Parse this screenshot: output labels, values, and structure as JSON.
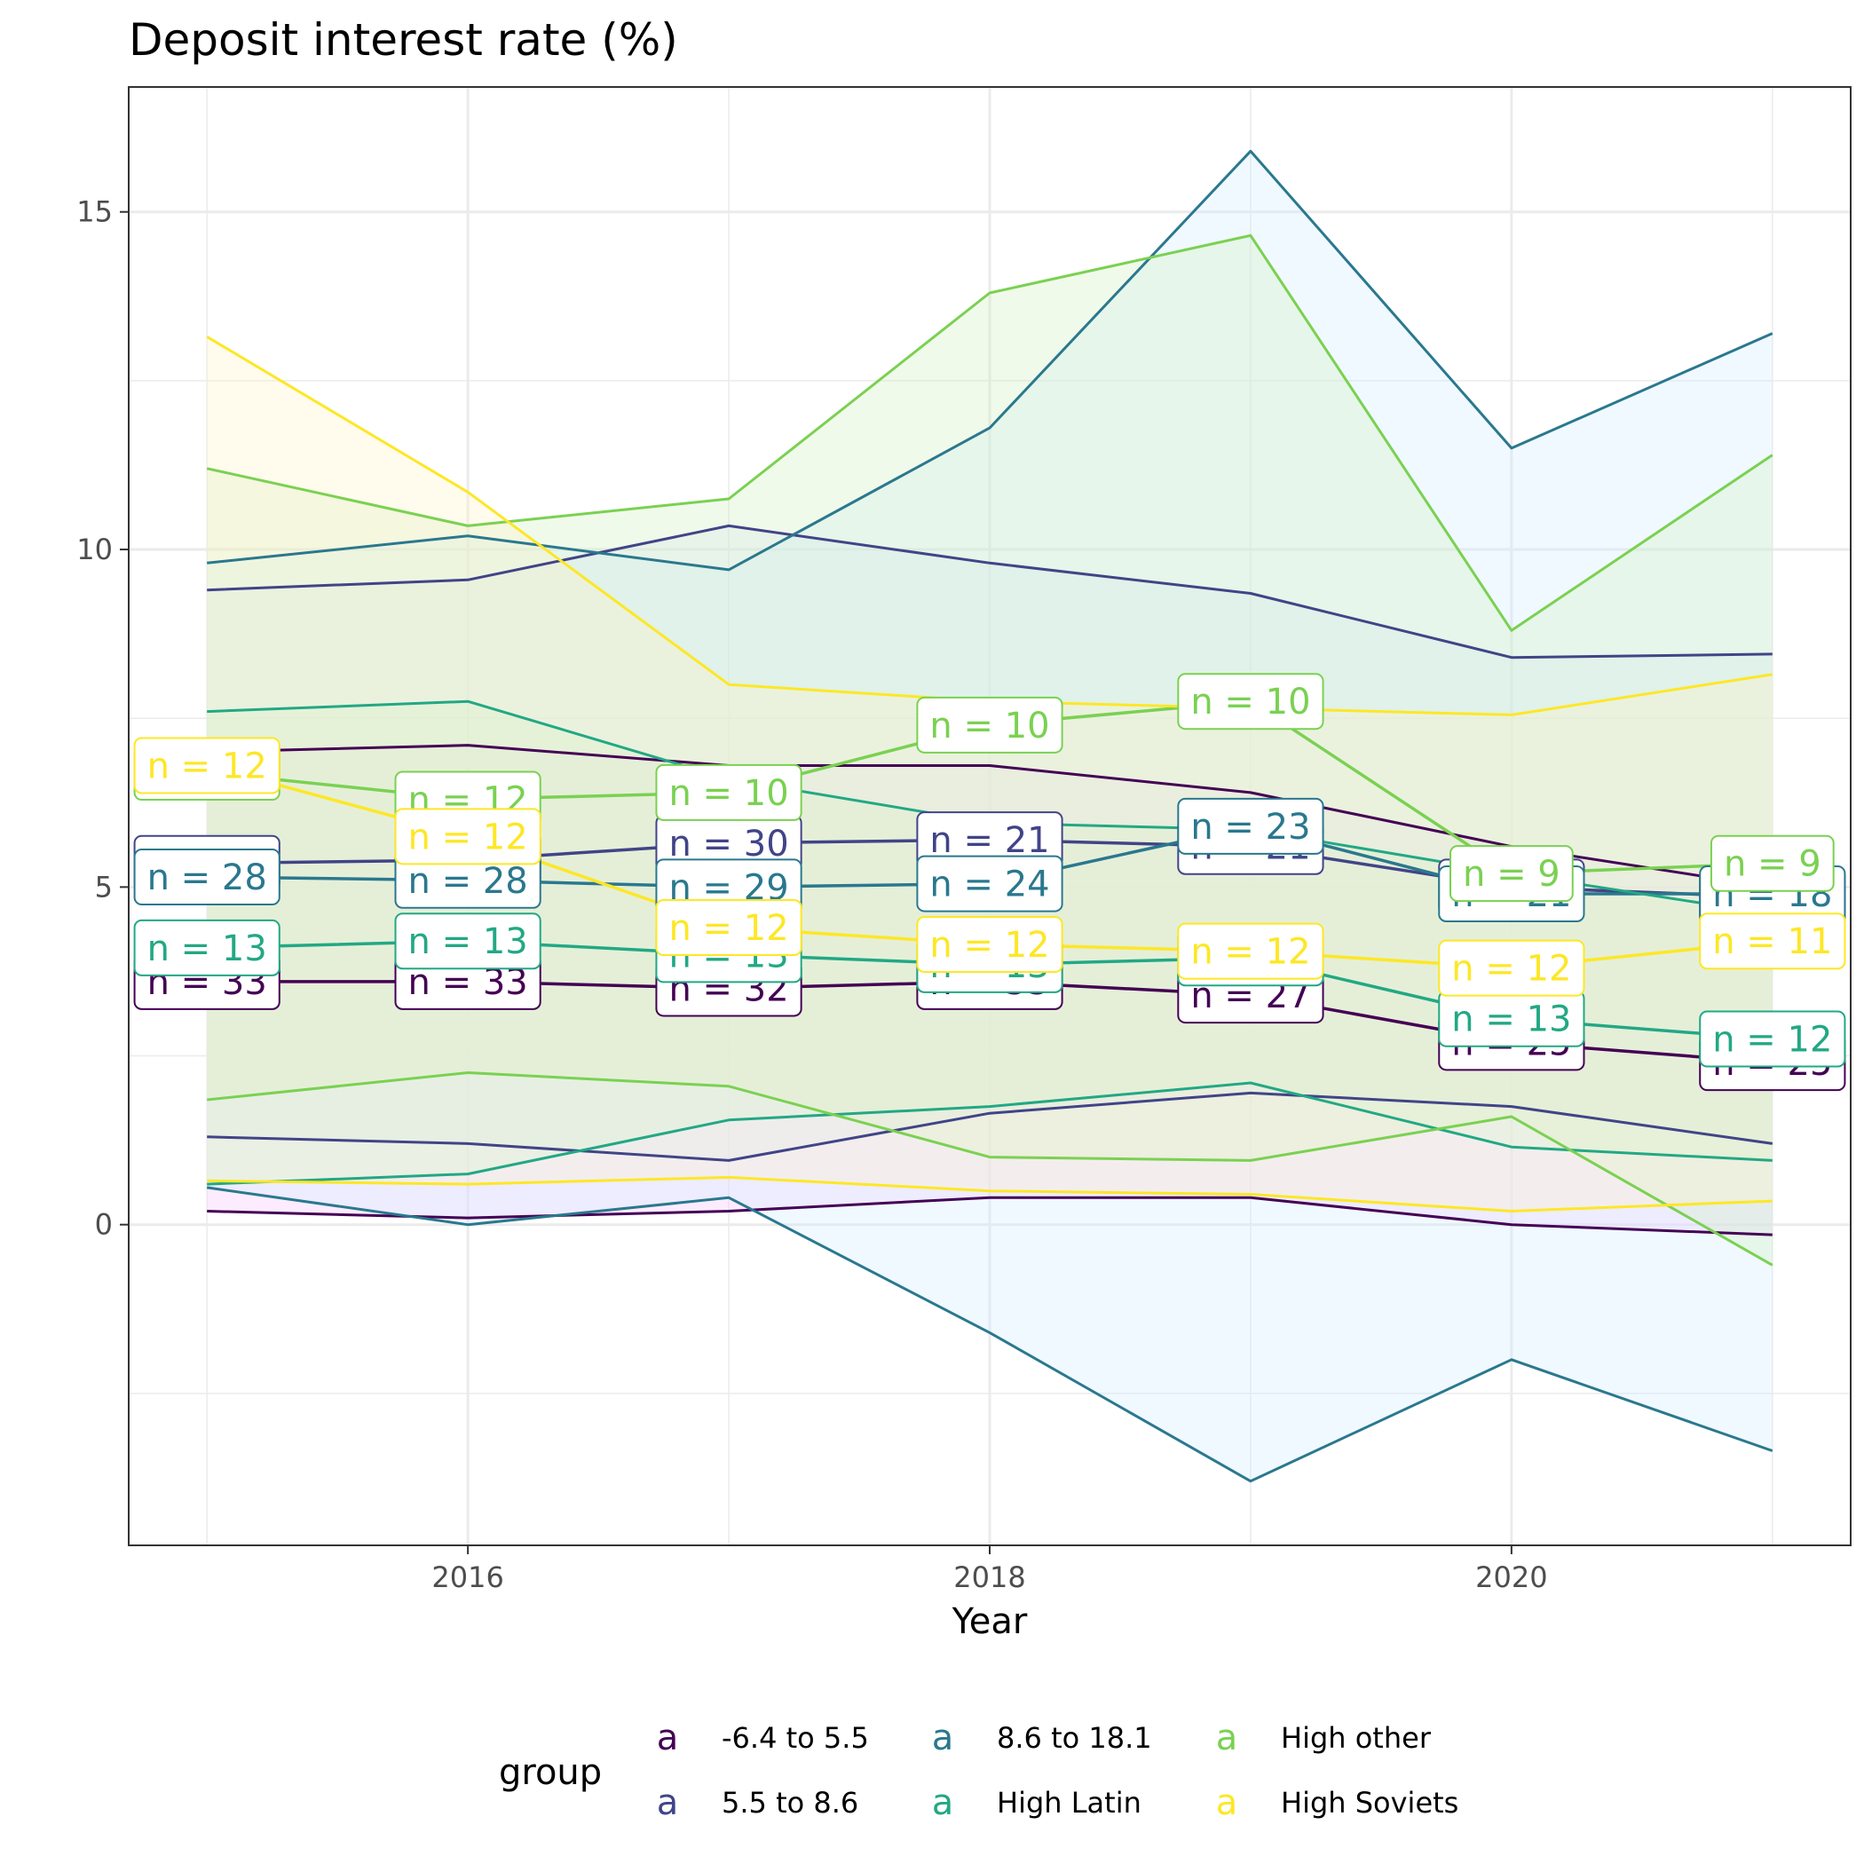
{
  "chart_data": {
    "type": "line",
    "title": "Deposit interest rate (%)",
    "xlabel": "Year",
    "ylabel": "",
    "x": [
      2015,
      2016,
      2017,
      2018,
      2019,
      2020,
      2021
    ],
    "xlim": [
      2014.7,
      2021.3
    ],
    "ylim": [
      -4.75,
      16.85
    ],
    "x_ticks": [
      2016,
      2018,
      2020
    ],
    "x_tick_labels": [
      "2016",
      "2018",
      "2020"
    ],
    "y_ticks": [
      0,
      5,
      10,
      15
    ],
    "y_tick_labels": [
      "0",
      "5",
      "10",
      "15"
    ],
    "grid": true,
    "legend": {
      "title": "group",
      "position": "bottom",
      "key_glyph": "a"
    },
    "series": [
      {
        "name": "-6.4 to 5.5",
        "color": "#440154",
        "fill": "#f8c6ff",
        "median": [
          3.6,
          3.6,
          3.5,
          3.6,
          3.4,
          2.7,
          2.4
        ],
        "upper": [
          7.0,
          7.1,
          6.8,
          6.8,
          6.4,
          5.6,
          5.0
        ],
        "lower": [
          0.2,
          0.1,
          0.2,
          0.4,
          0.4,
          0.0,
          -0.15
        ],
        "n_labels": [
          "n = 33",
          "n = 33",
          "n = 32",
          "n = 33",
          "n = 27",
          "n = 25",
          "n = 25"
        ]
      },
      {
        "name": "5.5 to 8.6",
        "color": "#414487",
        "fill": "#dbe6fb",
        "median": [
          5.35,
          5.4,
          5.65,
          5.7,
          5.6,
          5.0,
          4.85
        ],
        "upper": [
          9.4,
          9.55,
          10.35,
          9.8,
          9.35,
          8.4,
          8.45
        ],
        "lower": [
          1.3,
          1.2,
          0.95,
          1.65,
          1.95,
          1.75,
          1.2
        ],
        "n_labels": [
          "n = 30",
          "n = 29",
          "n = 30",
          "n = 21",
          "n = 21",
          "n = 19",
          "n = 17"
        ]
      },
      {
        "name": "8.6 to 18.1",
        "color": "#2a788e",
        "fill": "#d2ecff",
        "median": [
          5.15,
          5.1,
          5.0,
          5.05,
          5.9,
          4.9,
          4.9
        ],
        "upper": [
          9.8,
          10.2,
          9.7,
          11.8,
          15.9,
          11.5,
          13.2
        ],
        "lower": [
          0.55,
          0.0,
          0.4,
          -1.6,
          -3.8,
          -2.0,
          -3.35
        ],
        "n_labels": [
          "n = 28",
          "n = 28",
          "n = 29",
          "n = 24",
          "n = 23",
          "n = 21",
          "n = 18"
        ]
      },
      {
        "name": "High Latin",
        "color": "#22a884",
        "fill": "#c8f5d8",
        "median": [
          4.1,
          4.2,
          4.0,
          3.85,
          3.95,
          3.05,
          2.75
        ],
        "upper": [
          7.6,
          7.75,
          6.6,
          5.95,
          5.85,
          5.2,
          4.6
        ],
        "lower": [
          0.6,
          0.75,
          1.55,
          1.75,
          2.1,
          1.15,
          0.95
        ],
        "n_labels": [
          "n = 13",
          "n = 13",
          "n = 13",
          "n = 13",
          "n = 13",
          "n = 13",
          "n = 12"
        ]
      },
      {
        "name": "High other",
        "color": "#7ad151",
        "fill": "#d0f0c0",
        "median": [
          6.7,
          6.3,
          6.4,
          7.4,
          7.75,
          5.2,
          5.35
        ],
        "upper": [
          11.2,
          10.35,
          10.75,
          13.8,
          14.65,
          8.8,
          11.4
        ],
        "lower": [
          1.85,
          2.25,
          2.05,
          1.0,
          0.95,
          1.6,
          -0.6
        ],
        "n_labels": [
          "n = 12",
          "n = 12",
          "n = 10",
          "n = 10",
          "n = 10",
          "n = 9",
          "n = 9"
        ]
      },
      {
        "name": "High Soviets",
        "color": "#fde725",
        "fill": "#fff3c8",
        "median": [
          6.8,
          5.75,
          4.4,
          4.15,
          4.05,
          3.8,
          4.2
        ],
        "upper": [
          13.15,
          10.85,
          8.0,
          7.75,
          7.65,
          7.55,
          8.15
        ],
        "lower": [
          0.65,
          0.6,
          0.7,
          0.5,
          0.45,
          0.2,
          0.35
        ],
        "n_labels": [
          "n = 12",
          "n = 12",
          "n = 12",
          "n = 12",
          "n = 12",
          "n = 12",
          "n = 11"
        ]
      }
    ]
  }
}
